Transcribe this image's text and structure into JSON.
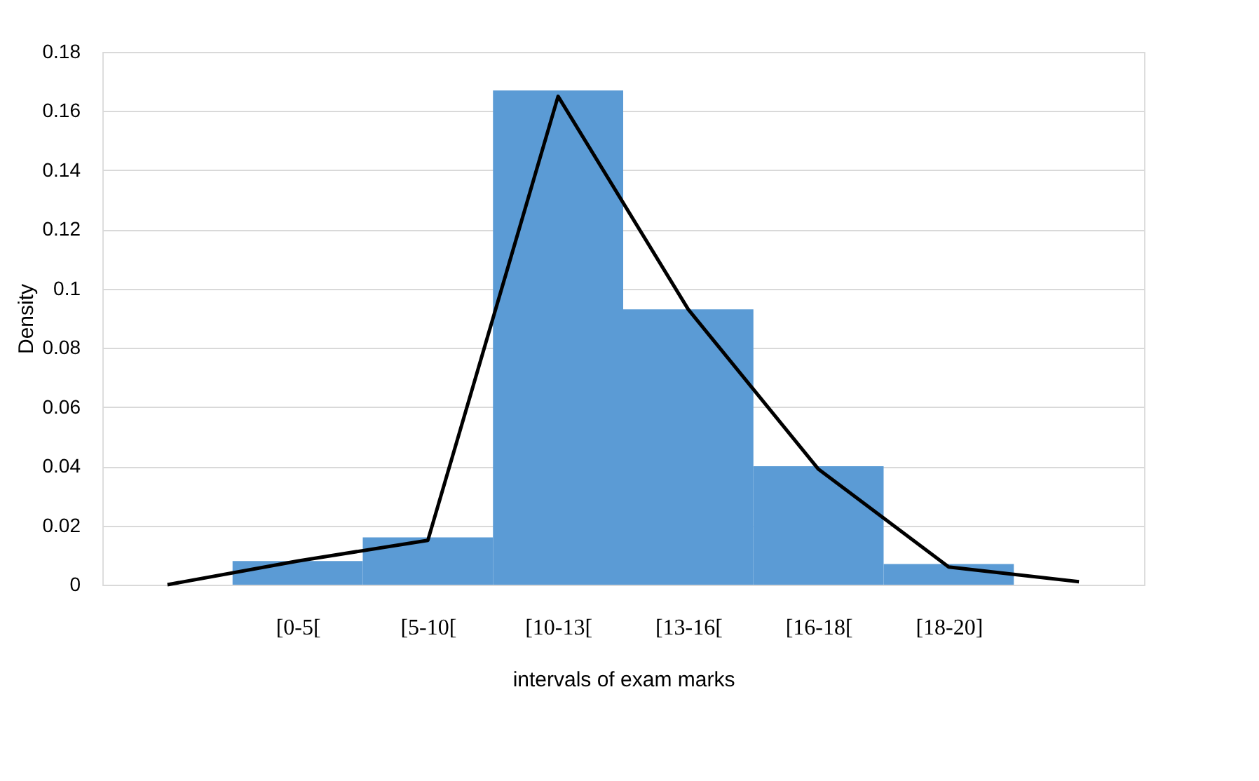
{
  "chart_data": {
    "type": "bar",
    "xlabel": "intervals of exam marks",
    "ylabel": "Density",
    "categories": [
      null,
      "[0-5[",
      "[5-10[",
      "[10-13[",
      "[13-16[",
      "[16-18[",
      "[18-20]",
      null
    ],
    "values": [
      null,
      0.008,
      0.016,
      0.167,
      0.093,
      0.04,
      0.007,
      null
    ],
    "color": "#5b9bd5",
    "series": [
      {
        "type": "line",
        "color": "#000000",
        "values": [
          0,
          0.008,
          0.015,
          0.165,
          0.093,
          0.039,
          0.006,
          0.001
        ]
      }
    ],
    "ylim": [
      0,
      0.18
    ],
    "yticks": [
      0,
      0.02,
      0.04,
      0.06,
      0.08,
      0.1,
      0.12,
      0.14,
      0.16,
      0.18
    ],
    "grid": "y",
    "marker": "none",
    "line_style": "solid"
  }
}
